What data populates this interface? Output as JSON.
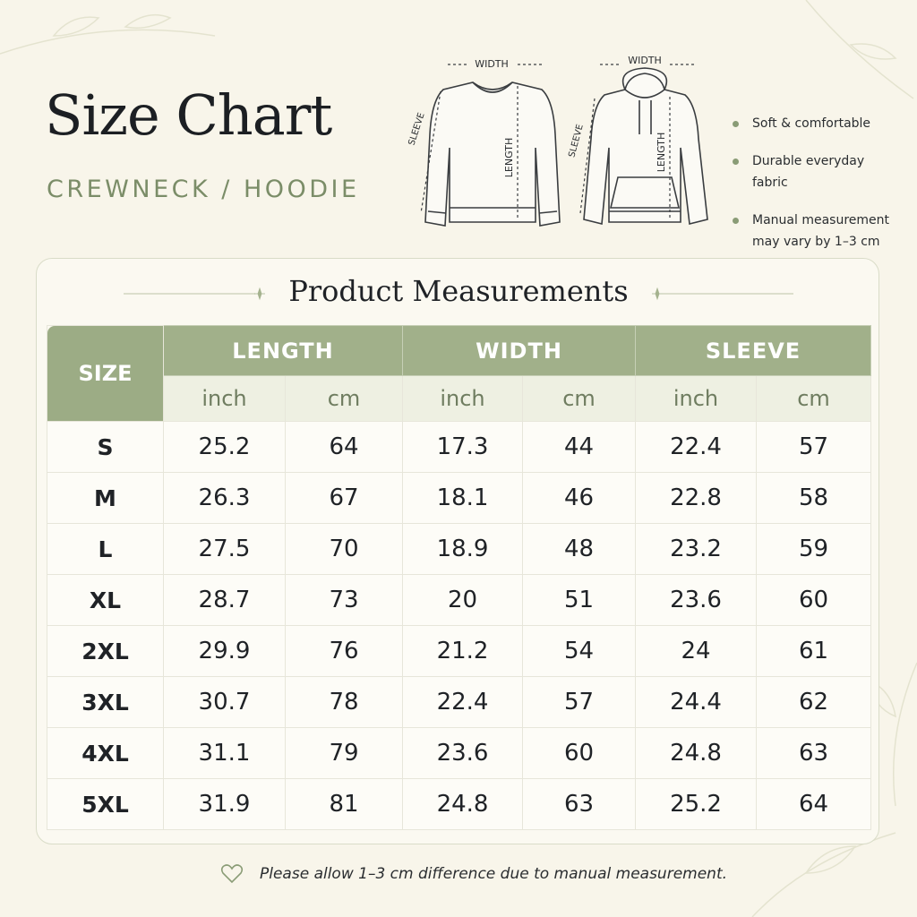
{
  "header": {
    "title": "Size Chart",
    "subtitle": "CREWNECK / HOODIE"
  },
  "diagrams": [
    {
      "width": "WIDTH",
      "sleeve": "SLEEVE",
      "length": "LENGTH"
    },
    {
      "width": "WIDTH",
      "sleeve": "SLEEVE",
      "length": "LENGTH"
    }
  ],
  "features": [
    "Soft & comfortable",
    "Durable everyday fabric",
    "Manual measurement may vary by 1–3 cm"
  ],
  "table": {
    "title": "Product Measurements",
    "size_header": "SIZE",
    "groups": [
      "LENGTH",
      "WIDTH",
      "SLEEVE"
    ],
    "units": [
      "inch",
      "cm",
      "inch",
      "cm",
      "inch",
      "cm"
    ],
    "rows": [
      [
        "S",
        25.2,
        64,
        17.3,
        44,
        22.4,
        57
      ],
      [
        "M",
        26.3,
        67,
        18.1,
        46,
        22.8,
        58
      ],
      [
        "L",
        27.5,
        70,
        18.9,
        48,
        23.2,
        59
      ],
      [
        "XL",
        28.7,
        73,
        20,
        51,
        23.6,
        60
      ],
      [
        "2XL",
        29.9,
        76,
        21.2,
        54,
        24,
        61
      ],
      [
        "3XL",
        30.7,
        78,
        22.4,
        57,
        24.4,
        62
      ],
      [
        "4XL",
        31.1,
        79,
        23.6,
        60,
        24.8,
        63
      ],
      [
        "5XL",
        31.9,
        81,
        24.8,
        63,
        25.2,
        64
      ]
    ]
  },
  "footer": {
    "note": "Please allow 1–3 cm difference due to manual measurement."
  }
}
